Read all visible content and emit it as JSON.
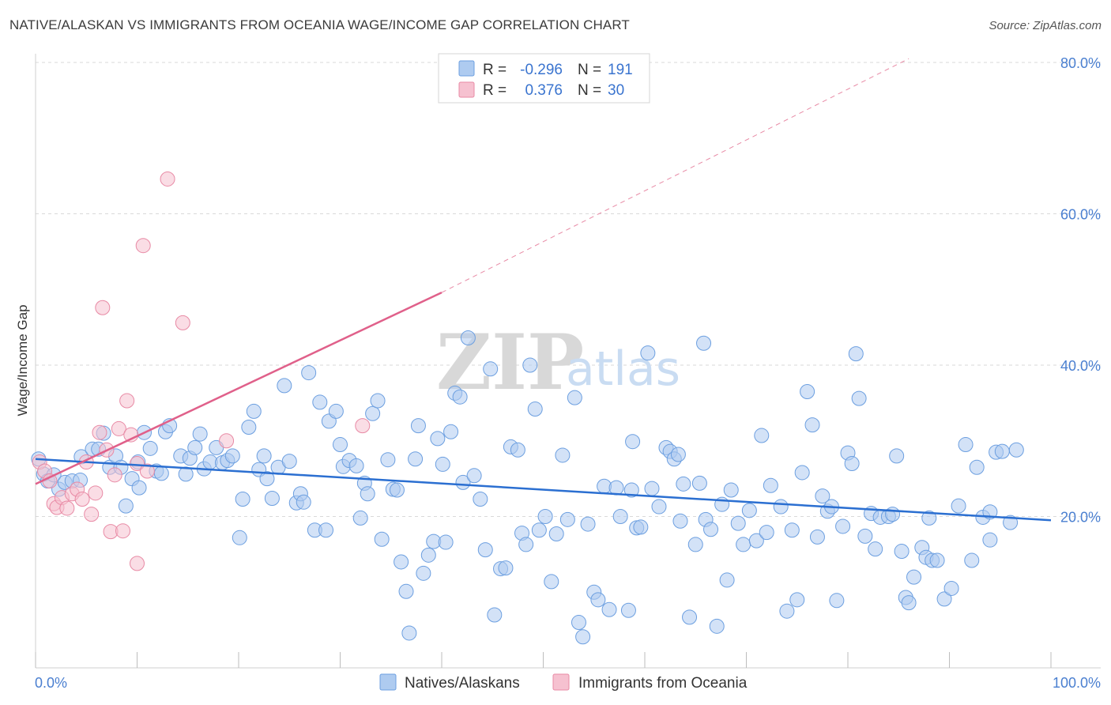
{
  "title": "NATIVE/ALASKAN VS IMMIGRANTS FROM OCEANIA WAGE/INCOME GAP CORRELATION CHART",
  "source": "Source: ZipAtlas.com",
  "watermark": {
    "zip": "ZIP",
    "atlas": "atlas"
  },
  "colors": {
    "blue_fill": "#aecbf0",
    "blue_stroke": "#6c9fe0",
    "blue_line": "#2b6fd1",
    "pink_fill": "#f6c1d0",
    "pink_stroke": "#e88aa5",
    "pink_line": "#e0608a",
    "grid": "#d9d9d9",
    "tick_text": "#4a7fd0"
  },
  "legend": {
    "rows": [
      {
        "r_label": "R =",
        "r_value": "-0.296",
        "n_label": "N =",
        "n_value": "191"
      },
      {
        "r_label": "R =",
        "r_value": "0.376",
        "n_label": "N =",
        "n_value": "30"
      }
    ]
  },
  "bottom_legend": [
    "Natives/Alaskans",
    "Immigrants from Oceania"
  ],
  "chart_data": {
    "type": "scatter",
    "title": "NATIVE/ALASKAN VS IMMIGRANTS FROM OCEANIA WAGE/INCOME GAP CORRELATION CHART",
    "xlabel": "",
    "ylabel": "Wage/Income Gap",
    "xlim": [
      0,
      100
    ],
    "ylim": [
      0,
      84
    ],
    "x_tick_labels": {
      "left": "0.0%",
      "right": "100.0%"
    },
    "y_ticks": [
      20,
      40,
      60,
      80
    ],
    "y_tick_labels": [
      "20.0%",
      "40.0%",
      "60.0%",
      "80.0%"
    ],
    "series": [
      {
        "name": "Natives/Alaskans",
        "r": -0.296,
        "n": 191,
        "trend": {
          "x0": 0,
          "y0": 27.6,
          "x1": 100,
          "y1": 19.5
        },
        "points": [
          [
            0.3,
            27.6
          ],
          [
            0.8,
            25.6
          ],
          [
            1.2,
            24.7
          ],
          [
            1.8,
            25.5
          ],
          [
            2.3,
            23.6
          ],
          [
            2.9,
            24.5
          ],
          [
            3.6,
            24.7
          ],
          [
            4.4,
            24.8
          ],
          [
            4.5,
            27.9
          ],
          [
            5.6,
            28.9
          ],
          [
            6.2,
            28.9
          ],
          [
            6.7,
            31.0
          ],
          [
            7.3,
            26.5
          ],
          [
            7.9,
            28.0
          ],
          [
            8.4,
            26.5
          ],
          [
            8.9,
            21.4
          ],
          [
            9.5,
            25.0
          ],
          [
            10.1,
            27.2
          ],
          [
            10.2,
            23.8
          ],
          [
            10.7,
            31.1
          ],
          [
            11.3,
            29.0
          ],
          [
            11.9,
            26.0
          ],
          [
            12.4,
            25.7
          ],
          [
            12.8,
            31.2
          ],
          [
            13.2,
            32.0
          ],
          [
            14.3,
            28.0
          ],
          [
            14.8,
            25.6
          ],
          [
            15.2,
            27.7
          ],
          [
            15.7,
            29.1
          ],
          [
            16.2,
            30.9
          ],
          [
            16.6,
            26.3
          ],
          [
            17.2,
            27.2
          ],
          [
            17.8,
            29.1
          ],
          [
            18.4,
            27.1
          ],
          [
            18.9,
            27.4
          ],
          [
            19.4,
            28.0
          ],
          [
            20.1,
            17.2
          ],
          [
            20.4,
            22.3
          ],
          [
            21.0,
            31.8
          ],
          [
            21.5,
            33.9
          ],
          [
            22.0,
            26.2
          ],
          [
            22.5,
            28.0
          ],
          [
            22.8,
            25.0
          ],
          [
            23.3,
            22.4
          ],
          [
            23.9,
            26.5
          ],
          [
            24.5,
            37.3
          ],
          [
            25.0,
            27.3
          ],
          [
            25.7,
            21.8
          ],
          [
            26.1,
            23.0
          ],
          [
            26.4,
            21.9
          ],
          [
            26.9,
            39.0
          ],
          [
            27.5,
            18.2
          ],
          [
            28.0,
            35.1
          ],
          [
            28.6,
            18.2
          ],
          [
            28.9,
            32.6
          ],
          [
            29.6,
            33.9
          ],
          [
            30.0,
            29.5
          ],
          [
            30.3,
            26.6
          ],
          [
            30.9,
            27.4
          ],
          [
            31.6,
            26.7
          ],
          [
            32.0,
            19.8
          ],
          [
            32.4,
            24.4
          ],
          [
            32.7,
            23.0
          ],
          [
            33.2,
            33.6
          ],
          [
            33.7,
            35.3
          ],
          [
            34.1,
            17.0
          ],
          [
            34.7,
            27.5
          ],
          [
            35.2,
            23.6
          ],
          [
            35.6,
            23.5
          ],
          [
            36.0,
            14.0
          ],
          [
            36.5,
            10.1
          ],
          [
            36.8,
            4.6
          ],
          [
            37.4,
            27.6
          ],
          [
            37.7,
            32.0
          ],
          [
            38.2,
            12.5
          ],
          [
            38.7,
            14.9
          ],
          [
            39.2,
            16.7
          ],
          [
            39.6,
            30.3
          ],
          [
            40.1,
            26.9
          ],
          [
            40.4,
            16.6
          ],
          [
            40.9,
            31.2
          ],
          [
            41.3,
            36.3
          ],
          [
            41.8,
            35.8
          ],
          [
            42.1,
            24.5
          ],
          [
            42.6,
            43.6
          ],
          [
            43.2,
            25.4
          ],
          [
            43.8,
            22.3
          ],
          [
            44.3,
            15.6
          ],
          [
            44.8,
            39.5
          ],
          [
            45.2,
            7.0
          ],
          [
            45.8,
            13.1
          ],
          [
            46.3,
            13.2
          ],
          [
            46.8,
            29.2
          ],
          [
            47.5,
            28.8
          ],
          [
            47.9,
            17.8
          ],
          [
            48.3,
            16.3
          ],
          [
            48.7,
            40.0
          ],
          [
            49.2,
            34.2
          ],
          [
            49.6,
            18.2
          ],
          [
            50.2,
            20.0
          ],
          [
            50.8,
            11.4
          ],
          [
            51.3,
            17.7
          ],
          [
            51.9,
            28.1
          ],
          [
            52.4,
            19.6
          ],
          [
            53.1,
            35.7
          ],
          [
            53.5,
            6.0
          ],
          [
            53.9,
            4.1
          ],
          [
            54.4,
            19.0
          ],
          [
            55.0,
            10.0
          ],
          [
            55.4,
            9.0
          ],
          [
            56.0,
            24.0
          ],
          [
            56.5,
            7.7
          ],
          [
            57.2,
            23.8
          ],
          [
            57.6,
            20.0
          ],
          [
            58.4,
            7.6
          ],
          [
            58.8,
            29.9
          ],
          [
            59.2,
            18.5
          ],
          [
            59.6,
            18.6
          ],
          [
            60.3,
            41.6
          ],
          [
            60.7,
            23.7
          ],
          [
            61.4,
            21.3
          ],
          [
            62.1,
            29.1
          ],
          [
            62.5,
            28.6
          ],
          [
            62.9,
            27.6
          ],
          [
            63.3,
            28.2
          ],
          [
            63.8,
            24.3
          ],
          [
            64.4,
            6.7
          ],
          [
            65.0,
            16.3
          ],
          [
            65.4,
            24.4
          ],
          [
            65.8,
            42.9
          ],
          [
            66.0,
            19.6
          ],
          [
            66.5,
            18.3
          ],
          [
            67.1,
            5.5
          ],
          [
            67.6,
            21.6
          ],
          [
            68.1,
            11.6
          ],
          [
            68.5,
            23.5
          ],
          [
            69.2,
            19.1
          ],
          [
            69.7,
            16.3
          ],
          [
            70.3,
            20.8
          ],
          [
            71.0,
            16.8
          ],
          [
            71.5,
            30.7
          ],
          [
            72.0,
            17.9
          ],
          [
            72.4,
            24.1
          ],
          [
            73.4,
            21.3
          ],
          [
            74.0,
            7.5
          ],
          [
            74.5,
            18.2
          ],
          [
            75.0,
            9.0
          ],
          [
            75.5,
            25.8
          ],
          [
            76.0,
            36.5
          ],
          [
            76.5,
            32.1
          ],
          [
            77.0,
            17.3
          ],
          [
            77.5,
            22.7
          ],
          [
            78.0,
            20.7
          ],
          [
            78.4,
            21.3
          ],
          [
            78.9,
            8.9
          ],
          [
            79.5,
            18.7
          ],
          [
            80.0,
            28.4
          ],
          [
            80.4,
            27.0
          ],
          [
            80.8,
            41.5
          ],
          [
            81.1,
            35.6
          ],
          [
            81.7,
            17.4
          ],
          [
            82.3,
            20.4
          ],
          [
            82.7,
            15.7
          ],
          [
            83.2,
            19.9
          ],
          [
            84.0,
            20.0
          ],
          [
            84.4,
            20.3
          ],
          [
            84.8,
            28.0
          ],
          [
            85.3,
            15.4
          ],
          [
            85.7,
            9.3
          ],
          [
            86.0,
            8.6
          ],
          [
            86.5,
            12.0
          ],
          [
            87.3,
            15.9
          ],
          [
            87.7,
            14.6
          ],
          [
            88.0,
            19.8
          ],
          [
            88.3,
            14.2
          ],
          [
            88.8,
            14.2
          ],
          [
            89.5,
            9.1
          ],
          [
            90.2,
            10.5
          ],
          [
            90.9,
            21.4
          ],
          [
            91.6,
            29.5
          ],
          [
            92.2,
            14.2
          ],
          [
            92.7,
            26.5
          ],
          [
            93.3,
            19.9
          ],
          [
            94.0,
            16.9
          ],
          [
            94.6,
            28.5
          ],
          [
            95.2,
            28.6
          ],
          [
            96.0,
            19.2
          ],
          [
            96.6,
            28.8
          ],
          [
            94.0,
            20.6
          ],
          [
            63.5,
            19.4
          ],
          [
            58.7,
            23.5
          ]
        ]
      },
      {
        "name": "Immigrants from Oceania",
        "r": 0.376,
        "n": 30,
        "trend": {
          "x0": 0,
          "y0": 24.3,
          "x1": 40,
          "y1": 49.6
        },
        "trend_extension": {
          "x0": 40,
          "y0": 49.6,
          "x1": 86,
          "y1": 80.5
        },
        "points": [
          [
            0.4,
            27.2
          ],
          [
            0.9,
            26.0
          ],
          [
            1.4,
            24.7
          ],
          [
            1.8,
            21.7
          ],
          [
            2.1,
            21.2
          ],
          [
            2.6,
            22.5
          ],
          [
            3.1,
            21.1
          ],
          [
            3.6,
            23.0
          ],
          [
            4.1,
            23.6
          ],
          [
            4.6,
            22.3
          ],
          [
            5.0,
            27.2
          ],
          [
            5.5,
            20.3
          ],
          [
            5.9,
            23.1
          ],
          [
            6.3,
            31.1
          ],
          [
            6.6,
            47.6
          ],
          [
            7.0,
            28.8
          ],
          [
            7.4,
            18.0
          ],
          [
            7.8,
            25.5
          ],
          [
            8.2,
            31.6
          ],
          [
            8.6,
            18.1
          ],
          [
            9.0,
            35.3
          ],
          [
            9.4,
            30.8
          ],
          [
            10.0,
            27.0
          ],
          [
            10.0,
            13.8
          ],
          [
            10.6,
            55.8
          ],
          [
            11.0,
            26.0
          ],
          [
            13.0,
            64.6
          ],
          [
            14.5,
            45.6
          ],
          [
            18.8,
            30.0
          ],
          [
            32.2,
            32.0
          ]
        ]
      }
    ]
  }
}
